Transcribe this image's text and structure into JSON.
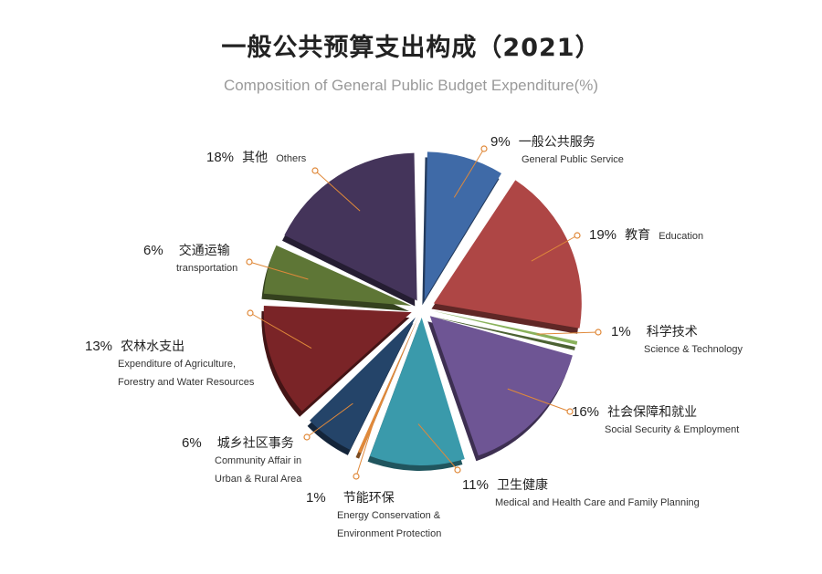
{
  "chart_data": {
    "type": "pie",
    "title": "一般公共预算支出构成（2021）",
    "subtitle": "Composition of General Public Budget Expenditure(%)",
    "unit": "%",
    "slices": [
      {
        "pct_label": "9%",
        "value": 9,
        "label_zh": "一般公共服务",
        "label_en": [
          "General Public Service"
        ],
        "color": "#3f6aa7"
      },
      {
        "pct_label": "19%",
        "value": 19,
        "label_zh": "教育",
        "label_en": [
          "Education"
        ],
        "color": "#ae4645"
      },
      {
        "pct_label": "1%",
        "value": 1,
        "label_zh": "科学技术",
        "label_en": [
          "Science & Technology"
        ],
        "color": "#8ab25c"
      },
      {
        "pct_label": "16%",
        "value": 16,
        "label_zh": "社会保障和就业",
        "label_en": [
          "Social Security & Employment"
        ],
        "color": "#6e5594"
      },
      {
        "pct_label": "11%",
        "value": 11,
        "label_zh": "卫生健康",
        "label_en": [
          "Medical and  Health Care and Family Planning"
        ],
        "color": "#3a9aab"
      },
      {
        "pct_label": "1%",
        "value": 1,
        "label_zh": "节能环保",
        "label_en": [
          "Energy Conservation &",
          "Environment Protection"
        ],
        "color": "#e0893a"
      },
      {
        "pct_label": "6%",
        "value": 6,
        "label_zh": "城乡社区事务",
        "label_en": [
          "Community Affair in",
          "Urban & Rural Area"
        ],
        "color": "#244469"
      },
      {
        "pct_label": "13%",
        "value": 13,
        "label_zh": "农林水支出",
        "label_en": [
          "Expenditure of Agriculture,",
          "Forestry and Water Resources"
        ],
        "color": "#7a2427"
      },
      {
        "pct_label": "6%",
        "value": 6,
        "label_zh": "交通运输",
        "label_en": [
          "transportation"
        ],
        "color": "#5e7636"
      },
      {
        "pct_label": "18%",
        "value": 18,
        "label_zh": "其他",
        "label_en": [
          "Others"
        ],
        "color": "#44345a"
      }
    ]
  },
  "leader_color": "#e0893a"
}
